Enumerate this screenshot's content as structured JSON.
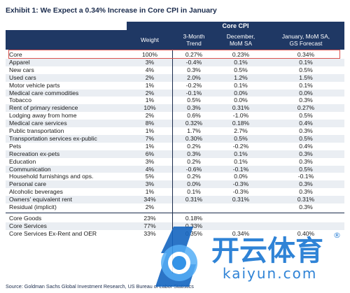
{
  "title": "Exhibit 1: We Expect a 0.34% Increase in Core CPI in January",
  "header": {
    "band": "Core CPI",
    "weight": "Weight",
    "trend3m_l1": "3-Month",
    "trend3m_l2": "Trend",
    "dec_l1": "December,",
    "dec_l2": "MoM SA",
    "jan_l1": "January, MoM SA,",
    "jan_l2": "GS Forecast"
  },
  "rows": [
    {
      "name": "Core",
      "weight": "100%",
      "trend3m": "0.27%",
      "dec": "0.23%",
      "jan": "0.34%"
    },
    {
      "name": "Apparel",
      "weight": "3%",
      "trend3m": "-0.4%",
      "dec": "0.1%",
      "jan": "0.1%"
    },
    {
      "name": "New cars",
      "weight": "4%",
      "trend3m": "0.3%",
      "dec": "0.5%",
      "jan": "0.5%"
    },
    {
      "name": "Used cars",
      "weight": "2%",
      "trend3m": "2.0%",
      "dec": "1.2%",
      "jan": "1.5%"
    },
    {
      "name": "Motor vehicle parts",
      "weight": "1%",
      "trend3m": "-0.2%",
      "dec": "0.1%",
      "jan": "0.1%"
    },
    {
      "name": "Medical care commodities",
      "weight": "2%",
      "trend3m": "-0.1%",
      "dec": "0.0%",
      "jan": "0.0%"
    },
    {
      "name": "Tobacco",
      "weight": "1%",
      "trend3m": "0.5%",
      "dec": "0.0%",
      "jan": "0.3%"
    },
    {
      "name": "Rent of primary residence",
      "weight": "10%",
      "trend3m": "0.3%",
      "dec": "0.31%",
      "jan": "0.27%"
    },
    {
      "name": "Lodging away from home",
      "weight": "2%",
      "trend3m": "0.6%",
      "dec": "-1.0%",
      "jan": "0.5%"
    },
    {
      "name": "Medical care services",
      "weight": "8%",
      "trend3m": "0.32%",
      "dec": "0.18%",
      "jan": "0.4%"
    },
    {
      "name": "Public transportation",
      "weight": "1%",
      "trend3m": "1.7%",
      "dec": "2.7%",
      "jan": "0.3%"
    },
    {
      "name": "Transportation services ex-public",
      "weight": "7%",
      "trend3m": "0.30%",
      "dec": "0.5%",
      "jan": "0.5%"
    },
    {
      "name": "Pets",
      "weight": "1%",
      "trend3m": "0.2%",
      "dec": "-0.2%",
      "jan": "0.4%"
    },
    {
      "name": "Recreation ex-pets",
      "weight": "6%",
      "trend3m": "0.3%",
      "dec": "0.1%",
      "jan": "0.3%"
    },
    {
      "name": "Education",
      "weight": "3%",
      "trend3m": "0.2%",
      "dec": "0.1%",
      "jan": "0.3%"
    },
    {
      "name": "Communication",
      "weight": "4%",
      "trend3m": "-0.6%",
      "dec": "-0.1%",
      "jan": "0.5%"
    },
    {
      "name": "Household furnishings and ops.",
      "weight": "5%",
      "trend3m": "0.2%",
      "dec": "0.0%",
      "jan": "-0.1%"
    },
    {
      "name": "Personal care",
      "weight": "3%",
      "trend3m": "0.0%",
      "dec": "-0.3%",
      "jan": "0.3%"
    },
    {
      "name": "Alcoholic beverages",
      "weight": "1%",
      "trend3m": "0.1%",
      "dec": "-0.3%",
      "jan": "0.3%"
    },
    {
      "name": "Owners' equivalent rent",
      "weight": "34%",
      "trend3m": "0.31%",
      "dec": "0.31%",
      "jan": "0.31%"
    },
    {
      "name": "Residual (implicit)",
      "weight": "2%",
      "trend3m": "",
      "dec": "",
      "jan": "0.3%"
    }
  ],
  "summary": [
    {
      "name": "Core Goods",
      "weight": "23%",
      "trend3m": "0.18%",
      "dec": "",
      "jan": ""
    },
    {
      "name": "Core Services",
      "weight": "77%",
      "trend3m": "0.33%",
      "dec": "",
      "jan": ""
    },
    {
      "name": "Core Services Ex-Rent and OER",
      "weight": "33%",
      "trend3m": "0.35%",
      "dec": "0.34%",
      "jan": "0.40%"
    }
  ],
  "source": "Source: Goldman Sachs Global Investment Research, US Bureau of Labor Statistics",
  "watermark": {
    "brand_cn": "开云体育",
    "url": "kaiyun.com",
    "registered": "®"
  },
  "colors": {
    "header_bg": "#1f3864",
    "highlight": "#d9534f",
    "alt_row": "#eaeef3"
  }
}
